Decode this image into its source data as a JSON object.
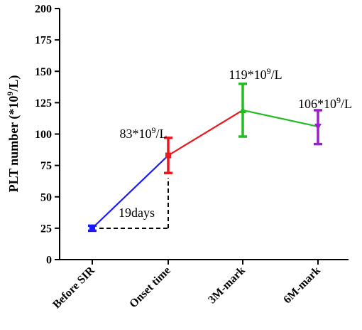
{
  "chart_data": {
    "type": "line",
    "ylabel_main": "PLT number (*10",
    "ylabel_sup": "9",
    "ylabel_tail": "/L)",
    "xlabel": "",
    "ylim": [
      0,
      200
    ],
    "yticks": [
      "0",
      "25",
      "50",
      "75",
      "100",
      "125",
      "150",
      "175",
      "200"
    ],
    "grid": false,
    "categories": [
      "Before SIR",
      "Onset time",
      "3M-mark",
      "6M-mark"
    ],
    "points": [
      {
        "category": "Before SIR",
        "value": 25,
        "err_low": 23,
        "err_high": 27,
        "marker": "square",
        "color": "#1a1aff"
      },
      {
        "category": "Onset time",
        "value": 83,
        "err_low": 69,
        "err_high": 97,
        "marker": "square",
        "color": "#e8191f"
      },
      {
        "category": "3M-mark",
        "value": 119,
        "err_low": 98,
        "err_high": 140,
        "marker": "triangle-up",
        "color": "#22bb22"
      },
      {
        "category": "6M-mark",
        "value": 106,
        "err_low": 92,
        "err_high": 119,
        "marker": "triangle-down",
        "color": "#9a21c9"
      }
    ],
    "segments": [
      {
        "from": 0,
        "to": 1,
        "color": "#1a1aff"
      },
      {
        "from": 1,
        "to": 2,
        "color": "#e8191f"
      },
      {
        "from": 2,
        "to": 3,
        "color": "#22bb22"
      }
    ],
    "annotations": [
      {
        "id": "onset",
        "main": "83*10",
        "sup": "9",
        "tail": "/L"
      },
      {
        "id": "m3",
        "main": "119*10",
        "sup": "9",
        "tail": "/L"
      },
      {
        "id": "m6",
        "main": "106*10",
        "sup": "9",
        "tail": "/L"
      }
    ],
    "interval_label": "19days"
  }
}
